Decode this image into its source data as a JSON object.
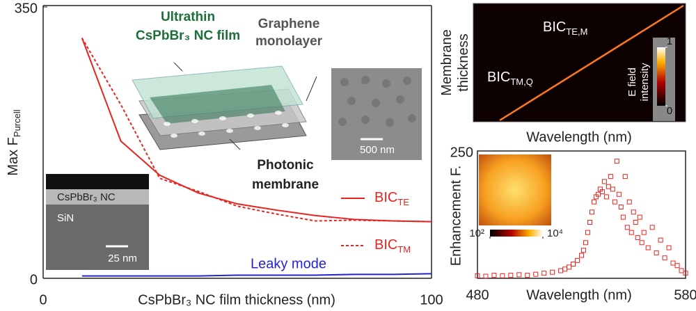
{
  "chart_data": [
    {
      "type": "line",
      "x_label": "CsPbBr₃ NC film thickness (nm)",
      "y_label": "Max F",
      "y_label_sub": "Purcell",
      "xlim": [
        0,
        100
      ],
      "ylim": [
        0,
        350
      ],
      "xticks": [
        0,
        100
      ],
      "yticks": [
        0,
        350
      ],
      "x": [
        10,
        20,
        30,
        40,
        50,
        60,
        70,
        80,
        90,
        100
      ],
      "series": [
        {
          "name": "BIC",
          "subscript": "TE",
          "color": "#e8231f",
          "style": "solid",
          "values": [
            310,
            177,
            133,
            110,
            96,
            88,
            81,
            76,
            74,
            73
          ]
        },
        {
          "name": "BIC",
          "subscript": "TM",
          "color": "#e8231f",
          "style": "dotted",
          "values": [
            310,
            224,
            129,
            112,
            93,
            83,
            74,
            75,
            74,
            73
          ]
        },
        {
          "name": "Leaky mode",
          "color": "#2323d0",
          "style": "solid",
          "values": [
            3,
            3,
            3,
            3,
            4,
            4,
            4,
            5,
            5,
            6
          ]
        }
      ],
      "annotations": [
        "Ultrathin",
        "CsPbBr₃ NC film",
        "Graphene",
        "monolayer",
        "Photonic",
        "membrane",
        "500 nm",
        "CsPbBr₃ NC",
        "SiN",
        "25 nm"
      ]
    },
    {
      "type": "heatmap",
      "x_label": "Wavelength (nm)",
      "y_label": [
        "Membrane",
        "thickness"
      ],
      "labels": [
        {
          "text": "BIC",
          "sub": "TE,M"
        },
        {
          "text": "BIC",
          "sub": "TM,Q"
        }
      ],
      "colorbar_label": [
        "E field",
        "intensity"
      ],
      "colorbar_lim": [
        0,
        1
      ],
      "colorbar_ticks": [
        0,
        1
      ]
    },
    {
      "type": "scatter",
      "x_label": "Wavelength (nm)",
      "y_label": "Enhancement F.",
      "xlim": [
        480,
        580
      ],
      "ylim": [
        0,
        250
      ],
      "xticks": [
        480,
        580
      ],
      "yticks": [
        250
      ],
      "color": "#e8231f",
      "x": [
        480,
        484,
        488,
        492,
        496,
        500,
        504,
        508,
        512,
        516,
        520,
        522,
        524,
        526,
        528,
        530,
        531,
        532,
        533,
        534,
        535,
        536,
        537,
        538,
        539,
        540,
        541,
        542,
        543,
        544,
        545,
        546,
        547,
        548,
        549,
        550,
        551,
        552,
        553,
        554,
        555,
        556,
        557,
        558,
        559,
        560,
        562,
        564,
        566,
        568,
        570,
        572,
        574,
        576,
        578,
        580
      ],
      "values": [
        5,
        4,
        6,
        5,
        6,
        7,
        6,
        8,
        10,
        12,
        15,
        18,
        22,
        28,
        35,
        45,
        55,
        70,
        90,
        110,
        130,
        150,
        160,
        165,
        175,
        170,
        190,
        160,
        180,
        200,
        175,
        150,
        230,
        165,
        140,
        120,
        200,
        100,
        150,
        90,
        130,
        110,
        80,
        120,
        70,
        90,
        60,
        100,
        50,
        75,
        40,
        60,
        30,
        25,
        15,
        10
      ],
      "inset_log": true,
      "inset_colorbar_lim": [
        100,
        10000
      ],
      "inset_colorbar_ticks": [
        {
          "value": 100,
          "label": "10²"
        },
        {
          "value": 10000,
          "label": "10⁴"
        }
      ]
    }
  ]
}
